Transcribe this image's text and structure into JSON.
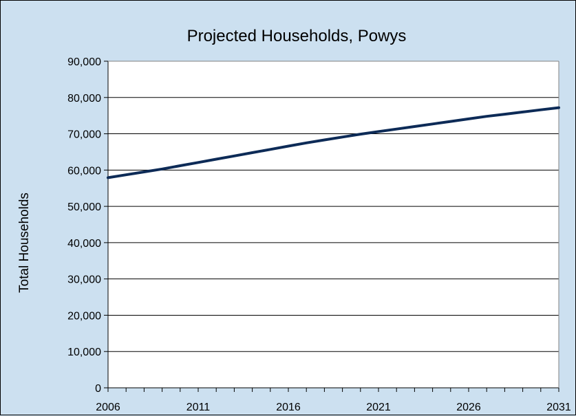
{
  "chart_data": {
    "type": "line",
    "title": "Projected Households, Powys",
    "xlabel": "",
    "ylabel": "Total Households",
    "x_tick_labels": [
      "2006",
      "2011",
      "2016",
      "2021",
      "2026",
      "2031"
    ],
    "y_tick_labels": [
      "0",
      "10,000",
      "20,000",
      "30,000",
      "40,000",
      "50,000",
      "60,000",
      "70,000",
      "80,000",
      "90,000"
    ],
    "xlim": [
      2006,
      2031
    ],
    "ylim": [
      0,
      90000
    ],
    "grid": "horizontal",
    "legend": "none",
    "series": [
      {
        "color": "#0d2b57",
        "x": [
          2006,
          2007,
          2008,
          2009,
          2010,
          2011,
          2012,
          2013,
          2014,
          2015,
          2016,
          2017,
          2018,
          2019,
          2020,
          2021,
          2022,
          2023,
          2024,
          2025,
          2026,
          2027,
          2028,
          2029,
          2030,
          2031
        ],
        "y": [
          57900,
          58700,
          59500,
          60300,
          61200,
          62100,
          63000,
          63900,
          64800,
          65700,
          66600,
          67500,
          68300,
          69100,
          69900,
          70600,
          71300,
          72000,
          72700,
          73400,
          74100,
          74800,
          75400,
          76000,
          76600,
          77200
        ]
      }
    ]
  },
  "colors": {
    "background": "#cce0f0",
    "plot_background": "#ffffff",
    "line": "#0d2b57"
  }
}
